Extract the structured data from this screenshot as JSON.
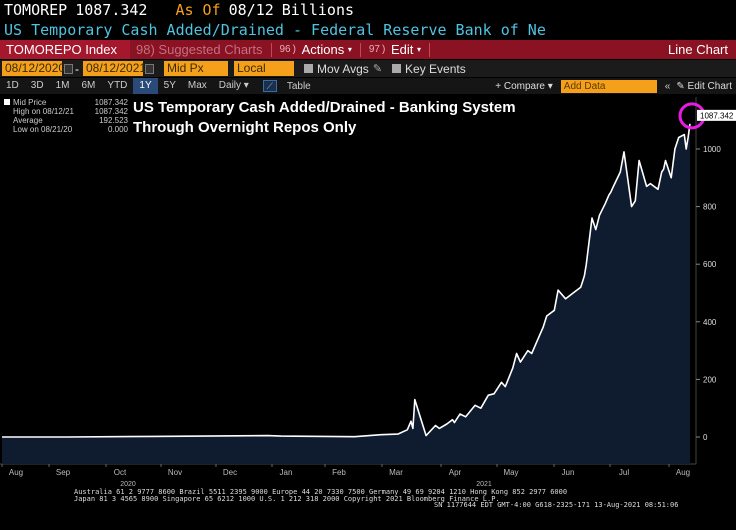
{
  "header": {
    "ticker": "TOMOREP",
    "last_value": "1087.342",
    "as_of_label": "As Of",
    "as_of_date": "08/12",
    "unit": "Billions",
    "description": "US Temporary Cash Added/Drained - Federal Reserve Bank of Ne"
  },
  "menubar": {
    "security": "TOMOREPO Index",
    "suggested_num": "98",
    "suggested_label": "Suggested Charts",
    "actions_num": "96",
    "actions_label": "Actions",
    "edit_num": "97",
    "edit_label": "Edit",
    "chart_type": "Line Chart"
  },
  "params": {
    "start_date": "08/12/2020",
    "end_date": "08/12/2021",
    "field": "Mid Px",
    "currency": "Local CCY",
    "mov_avgs": "Mov Avgs",
    "key_events": "Key Events"
  },
  "rangebar": {
    "ranges": [
      "1D",
      "3D",
      "1M",
      "6M",
      "YTD",
      "1Y",
      "5Y",
      "Max",
      "Daily"
    ],
    "active": "1Y",
    "daily_caret": "▾",
    "table_label": "Table",
    "compare_label": "+ Compare",
    "compare_caret": "▾",
    "add_data_placeholder": "Add Data",
    "chevrons": "«",
    "edit_chart_label": "Edit Chart"
  },
  "legend": {
    "series_name": "Mid Price",
    "series_value": "1087.342",
    "high_label": "High on 08/12/21",
    "high_value": "1087.342",
    "avg_label": "Average",
    "avg_value": "192.523",
    "low_label": "Low on 08/21/20",
    "low_value": "0.000"
  },
  "annotation": {
    "line1": "US Temporary Cash Added/Drained - Banking System",
    "line2": "Through Overnight Repos Only"
  },
  "colors": {
    "accent_orange": "#f4a01b",
    "menubar_red": "#8a1222",
    "line": "#ffffff",
    "fill": "#0f1b2e",
    "circle": "#e81ce0",
    "last_label_bg": "#ffffff"
  },
  "chart_data": {
    "type": "area",
    "ylim": [
      -100,
      1150
    ],
    "yticks": [
      0,
      200,
      400,
      600,
      800,
      1000
    ],
    "last_value_label": "1087.342",
    "month_labels": [
      "Aug",
      "Sep",
      "Oct",
      "Nov",
      "Dec",
      "Jan",
      "Feb",
      "Mar",
      "Apr",
      "May",
      "Jun",
      "Jul",
      "Aug"
    ],
    "year_labels": [
      "2020",
      "2021"
    ],
    "x": [
      "2020-08-12",
      "2020-09-15",
      "2020-10-30",
      "2020-12-31",
      "2021-01-07",
      "2021-02-15",
      "2021-03-01",
      "2021-03-10",
      "2021-03-15",
      "2021-03-17",
      "2021-03-18",
      "2021-03-19",
      "2021-03-25",
      "2021-03-30",
      "2021-04-01",
      "2021-04-05",
      "2021-04-08",
      "2021-04-09",
      "2021-04-12",
      "2021-04-15",
      "2021-04-20",
      "2021-04-23",
      "2021-04-27",
      "2021-04-30",
      "2021-05-04",
      "2021-05-06",
      "2021-05-10",
      "2021-05-12",
      "2021-05-14",
      "2021-05-18",
      "2021-05-20",
      "2021-05-24",
      "2021-05-26",
      "2021-05-28",
      "2021-06-01",
      "2021-06-03",
      "2021-06-07",
      "2021-06-09",
      "2021-06-11",
      "2021-06-15",
      "2021-06-16",
      "2021-06-17",
      "2021-06-18",
      "2021-06-21",
      "2021-06-23",
      "2021-06-25",
      "2021-06-28",
      "2021-06-30",
      "2021-07-01",
      "2021-07-02",
      "2021-07-06",
      "2021-07-08",
      "2021-07-12",
      "2021-07-14",
      "2021-07-16",
      "2021-07-20",
      "2021-07-22",
      "2021-07-26",
      "2021-07-28",
      "2021-07-29",
      "2021-07-30",
      "2021-08-02",
      "2021-08-04",
      "2021-08-06",
      "2021-08-09",
      "2021-08-10",
      "2021-08-11",
      "2021-08-12"
    ],
    "values": [
      0,
      0,
      2,
      5,
      3,
      1,
      8,
      10,
      25,
      55,
      30,
      130,
      5,
      40,
      30,
      45,
      60,
      50,
      80,
      70,
      110,
      100,
      145,
      150,
      190,
      175,
      240,
      290,
      260,
      300,
      290,
      350,
      380,
      420,
      440,
      510,
      480,
      490,
      500,
      520,
      540,
      560,
      600,
      760,
      720,
      770,
      810,
      840,
      850,
      865,
      920,
      990,
      800,
      820,
      960,
      870,
      880,
      860,
      920,
      930,
      960,
      900,
      1000,
      1040,
      1050,
      1000,
      1040,
      1087.342
    ]
  },
  "footer": {
    "line1": "Australia 61 2 9777 8600  Brazil 5511 2395 9000  Europe 44 20 7330 7500  Germany 49 69 9204 1210  Hong Kong 852 2977 6000",
    "line2": "Japan 81 3 4565 8900        Singapore 65 6212 1000        U.S. 1 212 318 2000        Copyright 2021 Bloomberg Finance L.P.",
    "line3": "SN 1177644 EDT  GMT-4:00 G618-2325-171 13-Aug-2021 08:51:06"
  }
}
